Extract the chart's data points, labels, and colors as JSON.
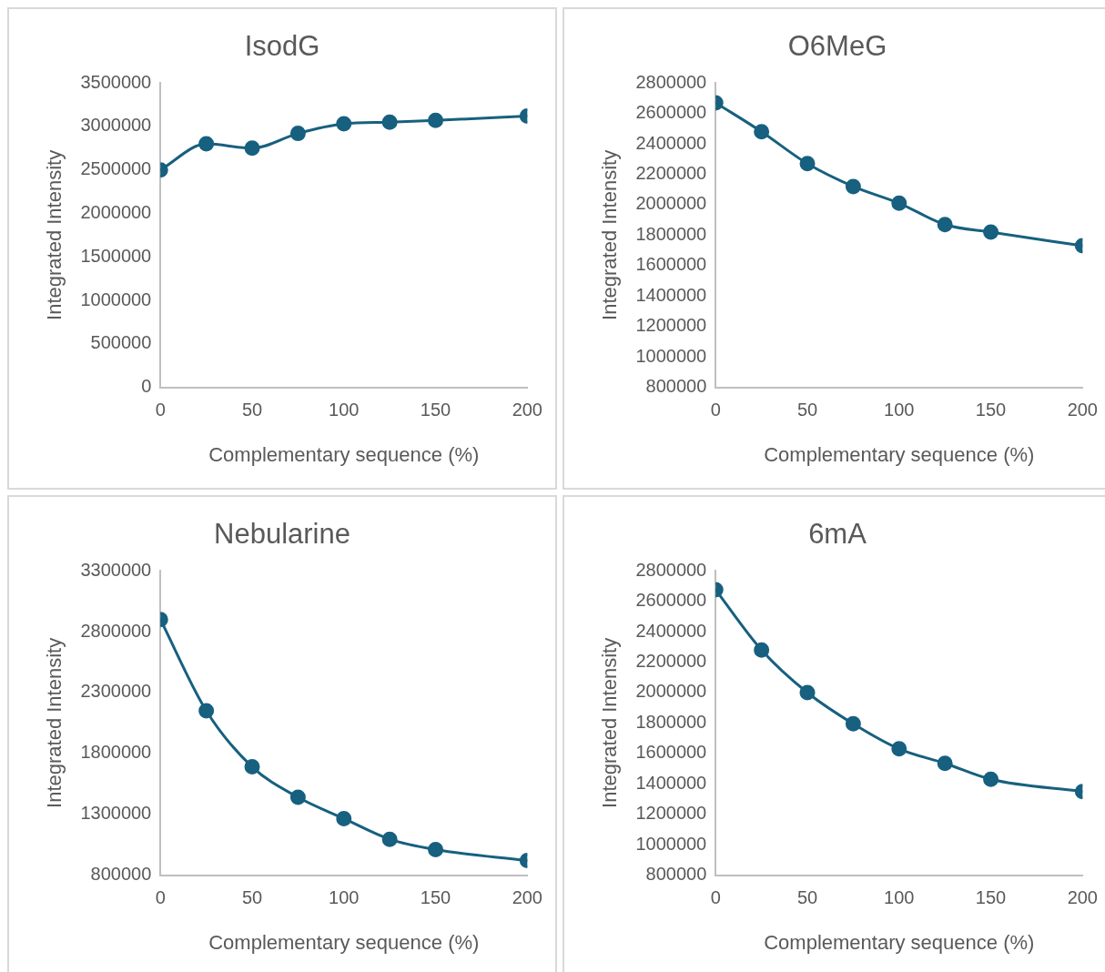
{
  "chart_data": [
    {
      "type": "line",
      "title": "IsodG",
      "xlabel": "Complementary sequence (%)",
      "ylabel": "Integrated Intensity",
      "x": [
        0,
        25,
        50,
        75,
        100,
        125,
        150,
        200
      ],
      "xlim": [
        0,
        200
      ],
      "xticks": [
        0,
        50,
        100,
        150,
        200
      ],
      "ylim": [
        0,
        3500000
      ],
      "yticks": [
        0,
        500000,
        1000000,
        1500000,
        2000000,
        2500000,
        3000000,
        3500000
      ],
      "grid": false,
      "marker": "circle",
      "line_style": "solid",
      "series": [
        {
          "color": "#17607f",
          "values": [
            2500000,
            2800000,
            2750000,
            2920000,
            3030000,
            3050000,
            3070000,
            3120000
          ]
        }
      ]
    },
    {
      "type": "line",
      "title": "O6MeG",
      "xlabel": "Complementary sequence (%)",
      "ylabel": "Integrated Intensity",
      "x": [
        0,
        25,
        50,
        75,
        100,
        125,
        150,
        200
      ],
      "xlim": [
        0,
        200
      ],
      "xticks": [
        0,
        50,
        100,
        150,
        200
      ],
      "ylim": [
        800000,
        2800000
      ],
      "yticks": [
        800000,
        1000000,
        1200000,
        1400000,
        1600000,
        1800000,
        2000000,
        2200000,
        2400000,
        2600000,
        2800000
      ],
      "grid": false,
      "marker": "circle",
      "line_style": "solid",
      "series": [
        {
          "color": "#17607f",
          "values": [
            2670000,
            2480000,
            2270000,
            2120000,
            2010000,
            1870000,
            1820000,
            1730000
          ]
        }
      ]
    },
    {
      "type": "line",
      "title": "Nebularine",
      "xlabel": "Complementary sequence (%)",
      "ylabel": "Integrated Intensity",
      "x": [
        0,
        25,
        50,
        75,
        100,
        125,
        150,
        200
      ],
      "xlim": [
        0,
        200
      ],
      "xticks": [
        0,
        50,
        100,
        150,
        200
      ],
      "ylim": [
        800000,
        3300000
      ],
      "yticks": [
        800000,
        1300000,
        1800000,
        2300000,
        2800000,
        3300000
      ],
      "grid": false,
      "marker": "circle",
      "line_style": "solid",
      "series": [
        {
          "color": "#17607f",
          "values": [
            2900000,
            2150000,
            1690000,
            1440000,
            1265000,
            1095000,
            1010000,
            920000
          ]
        }
      ]
    },
    {
      "type": "line",
      "title": "6mA",
      "xlabel": "Complementary sequence (%)",
      "ylabel": "Integrated Intensity",
      "x": [
        0,
        25,
        50,
        75,
        100,
        125,
        150,
        200
      ],
      "xlim": [
        0,
        200
      ],
      "xticks": [
        0,
        50,
        100,
        150,
        200
      ],
      "ylim": [
        800000,
        2800000
      ],
      "yticks": [
        800000,
        1000000,
        1200000,
        1400000,
        1600000,
        1800000,
        2000000,
        2200000,
        2400000,
        2600000,
        2800000
      ],
      "grid": false,
      "marker": "circle",
      "line_style": "solid",
      "series": [
        {
          "color": "#17607f",
          "values": [
            2675000,
            2280000,
            2000000,
            1795000,
            1630000,
            1535000,
            1430000,
            1350000
          ]
        }
      ]
    }
  ]
}
